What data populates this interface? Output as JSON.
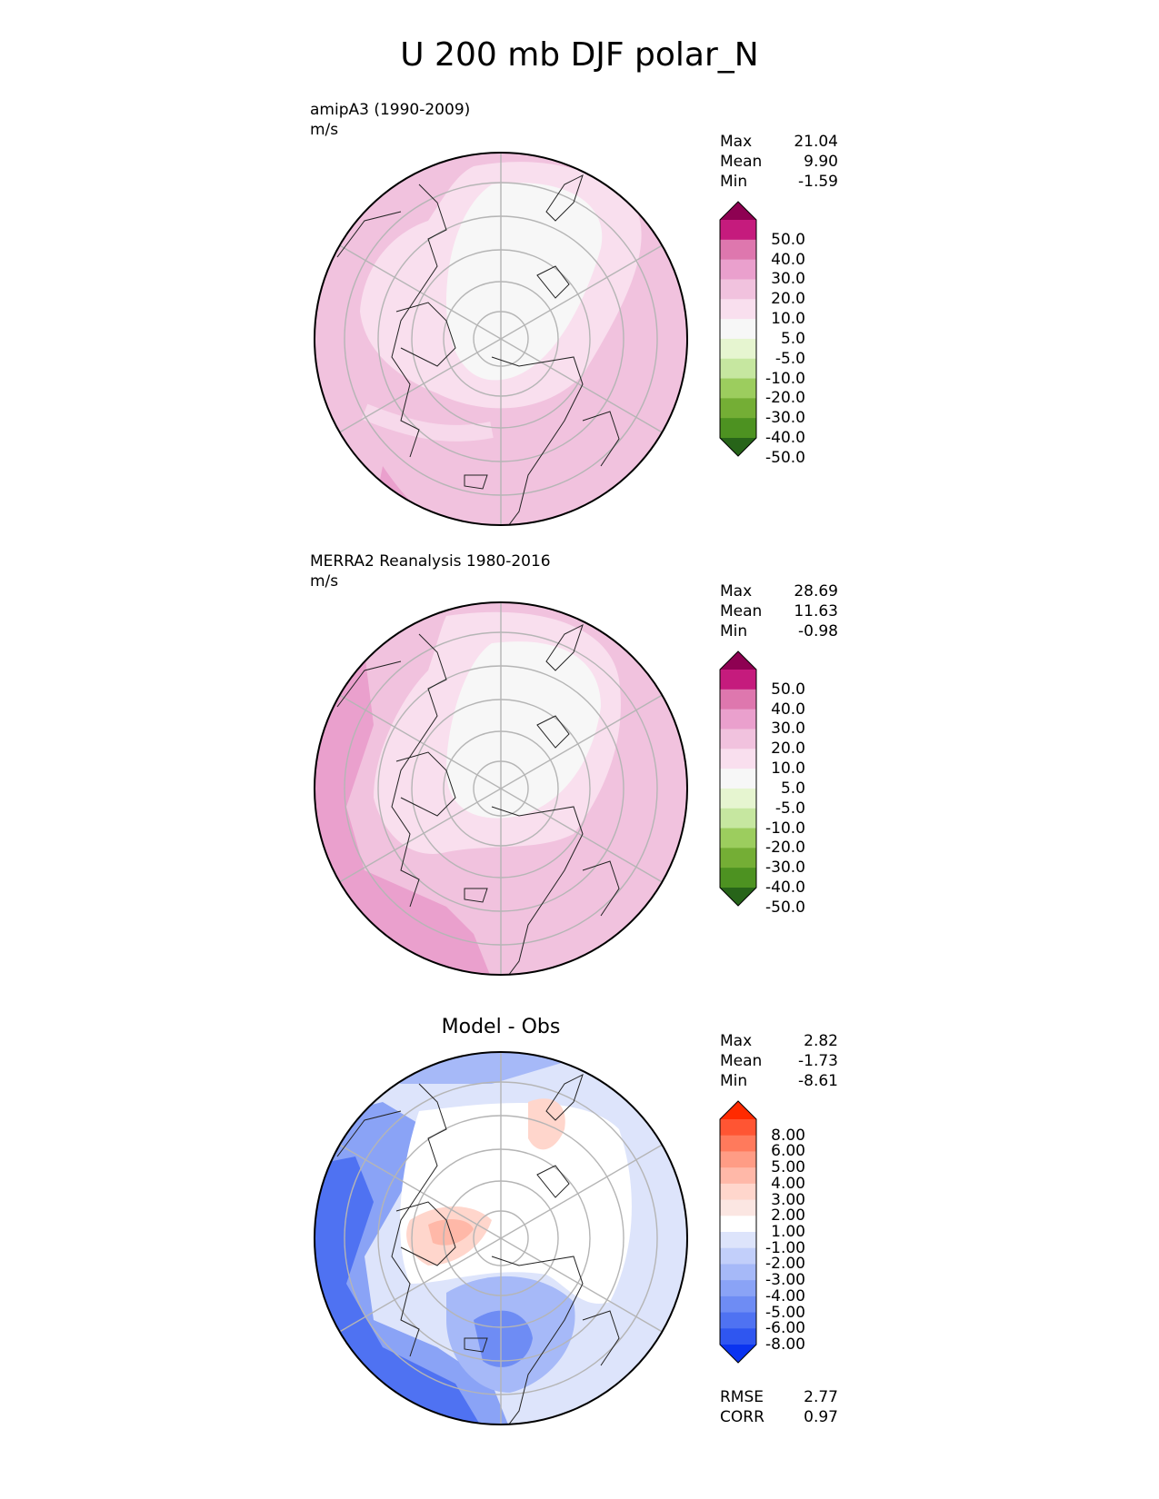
{
  "title": "U 200 mb DJF polar_N",
  "panels": [
    {
      "label": "amipA3 (1990-2009)",
      "units": "m/s",
      "stats": {
        "max_label": "Max",
        "max": "21.04",
        "mean_label": "Mean",
        "mean": "9.90",
        "min_label": "Min",
        "min": "-1.59"
      },
      "colorbar": {
        "colors": [
          "#8e0152",
          "#c51b7d",
          "#de77ae",
          "#eaa0cd",
          "#f1c2de",
          "#f9dfee",
          "#f7f7f7",
          "#e6f5d0",
          "#c6e7a0",
          "#9ccd5e",
          "#74ae35",
          "#4d9221",
          "#276419"
        ],
        "ticks": [
          "50.0",
          "40.0",
          "30.0",
          "20.0",
          "10.0",
          "5.0",
          "-5.0",
          "-10.0",
          "-20.0",
          "-30.0",
          "-40.0",
          "-50.0"
        ]
      }
    },
    {
      "label": "MERRA2 Reanalysis 1980-2016",
      "units": "m/s",
      "stats": {
        "max_label": "Max",
        "max": "28.69",
        "mean_label": "Mean",
        "mean": "11.63",
        "min_label": "Min",
        "min": "-0.98"
      },
      "colorbar": {
        "colors": [
          "#8e0152",
          "#c51b7d",
          "#de77ae",
          "#eaa0cd",
          "#f1c2de",
          "#f9dfee",
          "#f7f7f7",
          "#e6f5d0",
          "#c6e7a0",
          "#9ccd5e",
          "#74ae35",
          "#4d9221",
          "#276419"
        ],
        "ticks": [
          "50.0",
          "40.0",
          "30.0",
          "20.0",
          "10.0",
          "5.0",
          "-5.0",
          "-10.0",
          "-20.0",
          "-30.0",
          "-40.0",
          "-50.0"
        ]
      }
    },
    {
      "title": "Model - Obs",
      "stats": {
        "max_label": "Max",
        "max": "2.82",
        "mean_label": "Mean",
        "mean": "-1.73",
        "min_label": "Min",
        "min": "-8.61"
      },
      "extra": {
        "rmse_label": "RMSE",
        "rmse": "2.77",
        "corr_label": "CORR",
        "corr": "0.97"
      },
      "colorbar": {
        "colors": [
          "#ff2a00",
          "#ff5533",
          "#ff7a5c",
          "#ff9c85",
          "#ffb8a8",
          "#ffd6cc",
          "#fbe6e2",
          "#ffffff",
          "#dde4fb",
          "#c2cffa",
          "#a6b9f8",
          "#8aa3f6",
          "#6e8cf4",
          "#4f72f2",
          "#2f56f0",
          "#0a33f0"
        ],
        "ticks": [
          "8.00",
          "6.00",
          "5.00",
          "4.00",
          "3.00",
          "2.00",
          "1.00",
          "-1.00",
          "-2.00",
          "-3.00",
          "-4.00",
          "-5.00",
          "-6.00",
          "-8.00"
        ]
      }
    }
  ]
}
